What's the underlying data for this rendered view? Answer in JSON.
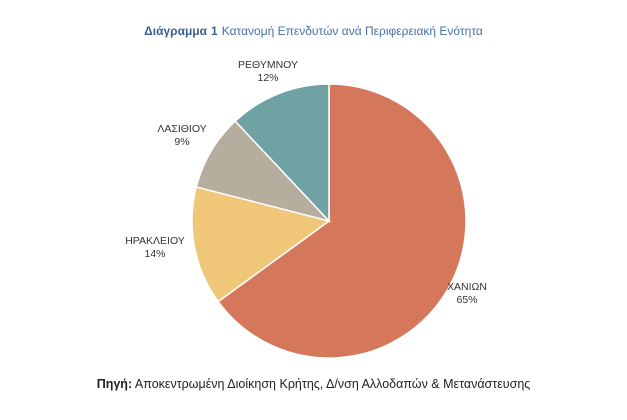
{
  "title": {
    "prefix": "Διάγραμμα",
    "number": "1",
    "text": "Κατανομή Επενδυτών ανά Περιφερειακή Ενότητα"
  },
  "chart_data": {
    "type": "pie",
    "title": "Διάγραμμα 1 Κατανομή Επενδυτών ανά Περιφερειακή Ενότητα",
    "slices": [
      {
        "label": "ΧΑΝΙΩΝ",
        "value": 65,
        "value_label": "65%",
        "color": "#d4775a"
      },
      {
        "label": "ΗΡΑΚΛΕΙΟΥ",
        "value": 14,
        "value_label": "14%",
        "color": "#f0c679"
      },
      {
        "label": "ΛΑΣΙΘΙΟΥ",
        "value": 9,
        "value_label": "9%",
        "color": "#b7ad9f"
      },
      {
        "label": "ΡΕΘΥΜΝΟΥ",
        "value": 12,
        "value_label": "12%",
        "color": "#6fa3a3"
      }
    ],
    "start": "12 o'clock",
    "direction": "clockwise",
    "legend": "none",
    "labels": "outside"
  },
  "source": {
    "label": "Πηγή:",
    "text": "Αποκεντρωμένη Διοίκηση Κρήτης, Δ/νση Αλλοδαπών & Μετανάστευσης"
  }
}
